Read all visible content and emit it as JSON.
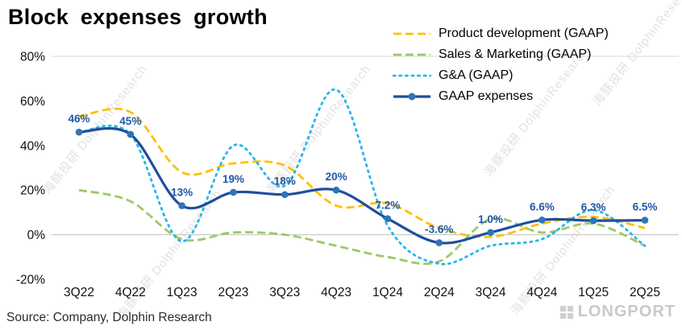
{
  "title": "Block expenses growth",
  "source": "Source: Company, Dolphin Research",
  "watermark": "海豚投研 DolphinResearch",
  "brand": "LONGPORT",
  "colors": {
    "top_border": "#d9d9d9",
    "zero_line": "#bfbfbf",
    "tick_text": "#111111",
    "data_label": "#2057A7"
  },
  "chart_data": {
    "type": "line",
    "title": "Block expenses growth",
    "categories": [
      "3Q22",
      "4Q22",
      "1Q23",
      "2Q23",
      "3Q23",
      "4Q23",
      "1Q24",
      "2Q24",
      "3Q24",
      "4Q24",
      "1Q25",
      "2Q25"
    ],
    "series": [
      {
        "name": "Product development (GAAP)",
        "color": "#FFC000",
        "style": "dashed",
        "values": [
          53,
          55,
          28,
          32,
          31,
          13,
          14,
          3,
          -1,
          5,
          8,
          3
        ]
      },
      {
        "name": "Sales & Marketing (GAAP)",
        "color": "#9DC963",
        "style": "dashed",
        "values": [
          20,
          15,
          -2,
          1,
          0,
          -5,
          -10,
          -12,
          7,
          1,
          5,
          -5
        ]
      },
      {
        "name": "G&A (GAAP)",
        "color": "#29B6EA",
        "style": "dotted",
        "values": [
          46,
          45,
          -3,
          40,
          22,
          65,
          4,
          -13,
          -5,
          -2,
          11,
          -5
        ]
      },
      {
        "name": "GAAP expenses",
        "color": "#1F4E9C",
        "marker_color": "#2E75B6",
        "style": "solid-marker",
        "values": [
          46,
          45,
          13,
          19,
          18,
          20,
          7.2,
          -3.6,
          1.0,
          6.6,
          6.3,
          6.5
        ],
        "labels": [
          "46%",
          "45%",
          "13%",
          "19%",
          "18%",
          "20%",
          "7.2%",
          "-3.6%",
          "1.0%",
          "6.6%",
          "6.3%",
          "6.5%"
        ]
      }
    ],
    "xlabel": "",
    "ylabel": "",
    "ylim": [
      -20,
      80
    ],
    "yticks": [
      "80%",
      "60%",
      "40%",
      "20%",
      "0%",
      "-20%"
    ],
    "ytick_values": [
      80,
      60,
      40,
      20,
      0,
      -20
    ],
    "legend_position": "top-right",
    "grid": false
  }
}
